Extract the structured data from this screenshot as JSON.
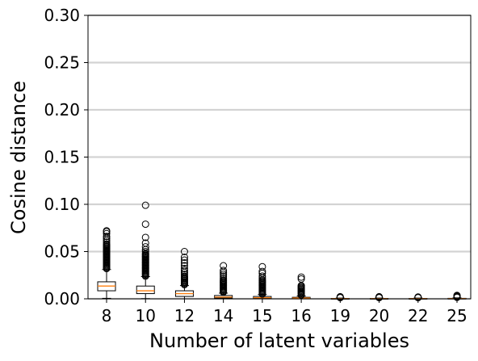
{
  "chart_data": {
    "type": "box",
    "xlabel": "Number of latent variables",
    "ylabel": "Cosine distance",
    "ylim": [
      0,
      0.3
    ],
    "yticks": [
      "0.00",
      "0.05",
      "0.10",
      "0.15",
      "0.20",
      "0.25",
      "0.30"
    ],
    "grid": "horizontal",
    "categories": [
      "8",
      "10",
      "12",
      "14",
      "15",
      "16",
      "19",
      "20",
      "22",
      "25"
    ],
    "boxes": [
      {
        "min": 0.0005,
        "q1": 0.0085,
        "median": 0.0135,
        "q3": 0.018,
        "max": 0.031,
        "outliers": [
          0.032,
          0.033,
          0.034,
          0.035,
          0.036,
          0.037,
          0.038,
          0.039,
          0.04,
          0.041,
          0.042,
          0.043,
          0.044,
          0.045,
          0.046,
          0.047,
          0.048,
          0.049,
          0.05,
          0.051,
          0.052,
          0.053,
          0.054,
          0.055,
          0.056,
          0.057,
          0.058,
          0.06,
          0.062,
          0.064,
          0.066,
          0.069,
          0.071,
          0.072
        ]
      },
      {
        "min": 0.0002,
        "q1": 0.0055,
        "median": 0.0085,
        "q3": 0.0135,
        "max": 0.0235,
        "outliers": [
          0.024,
          0.025,
          0.026,
          0.027,
          0.028,
          0.029,
          0.03,
          0.031,
          0.032,
          0.033,
          0.034,
          0.035,
          0.036,
          0.037,
          0.038,
          0.039,
          0.04,
          0.041,
          0.042,
          0.043,
          0.044,
          0.045,
          0.046,
          0.047,
          0.048,
          0.05,
          0.052,
          0.055,
          0.059,
          0.065,
          0.079,
          0.099
        ]
      },
      {
        "min": 0.0,
        "q1": 0.0025,
        "median": 0.0055,
        "q3": 0.0085,
        "max": 0.014,
        "outliers": [
          0.015,
          0.016,
          0.017,
          0.018,
          0.019,
          0.02,
          0.021,
          0.022,
          0.023,
          0.024,
          0.026,
          0.028,
          0.03,
          0.032,
          0.035,
          0.038,
          0.041,
          0.044,
          0.05
        ]
      },
      {
        "min": 0.0,
        "q1": 0.0008,
        "median": 0.0018,
        "q3": 0.0035,
        "max": 0.006,
        "outliers": [
          0.007,
          0.008,
          0.009,
          0.01,
          0.011,
          0.012,
          0.013,
          0.014,
          0.015,
          0.016,
          0.017,
          0.018,
          0.019,
          0.02,
          0.022,
          0.024,
          0.026,
          0.028,
          0.03,
          0.035
        ]
      },
      {
        "min": 0.0,
        "q1": 0.0005,
        "median": 0.0012,
        "q3": 0.0025,
        "max": 0.0045,
        "outliers": [
          0.005,
          0.006,
          0.007,
          0.008,
          0.009,
          0.01,
          0.011,
          0.012,
          0.013,
          0.014,
          0.015,
          0.016,
          0.017,
          0.018,
          0.019,
          0.02,
          0.022,
          0.024,
          0.027,
          0.029,
          0.034
        ]
      },
      {
        "min": 0.0,
        "q1": 0.0003,
        "median": 0.0008,
        "q3": 0.0016,
        "max": 0.003,
        "outliers": [
          0.004,
          0.005,
          0.006,
          0.007,
          0.008,
          0.009,
          0.01,
          0.011,
          0.012,
          0.013,
          0.014,
          0.021,
          0.023
        ]
      },
      {
        "min": 0.0,
        "q1": 0.0001,
        "median": 0.0002,
        "q3": 0.0004,
        "max": 0.0008,
        "outliers": [
          0.0012,
          0.0016,
          0.0019,
          0.0022
        ]
      },
      {
        "min": 0.0,
        "q1": 0.0001,
        "median": 0.0002,
        "q3": 0.0004,
        "max": 0.0008,
        "outliers": [
          0.0012,
          0.0016,
          0.0019,
          0.0022
        ]
      },
      {
        "min": 0.0,
        "q1": 0.0001,
        "median": 0.0002,
        "q3": 0.0004,
        "max": 0.0008,
        "outliers": [
          0.0012,
          0.0016,
          0.0019
        ]
      },
      {
        "min": 0.0,
        "q1": 0.0001,
        "median": 0.0002,
        "q3": 0.0005,
        "max": 0.001,
        "outliers": [
          0.0015,
          0.002,
          0.0024,
          0.0028,
          0.0032,
          0.0036
        ]
      }
    ],
    "colors": {
      "median": "#ff7f0e",
      "grid": "#d3d3d3",
      "box": "#000000"
    }
  }
}
